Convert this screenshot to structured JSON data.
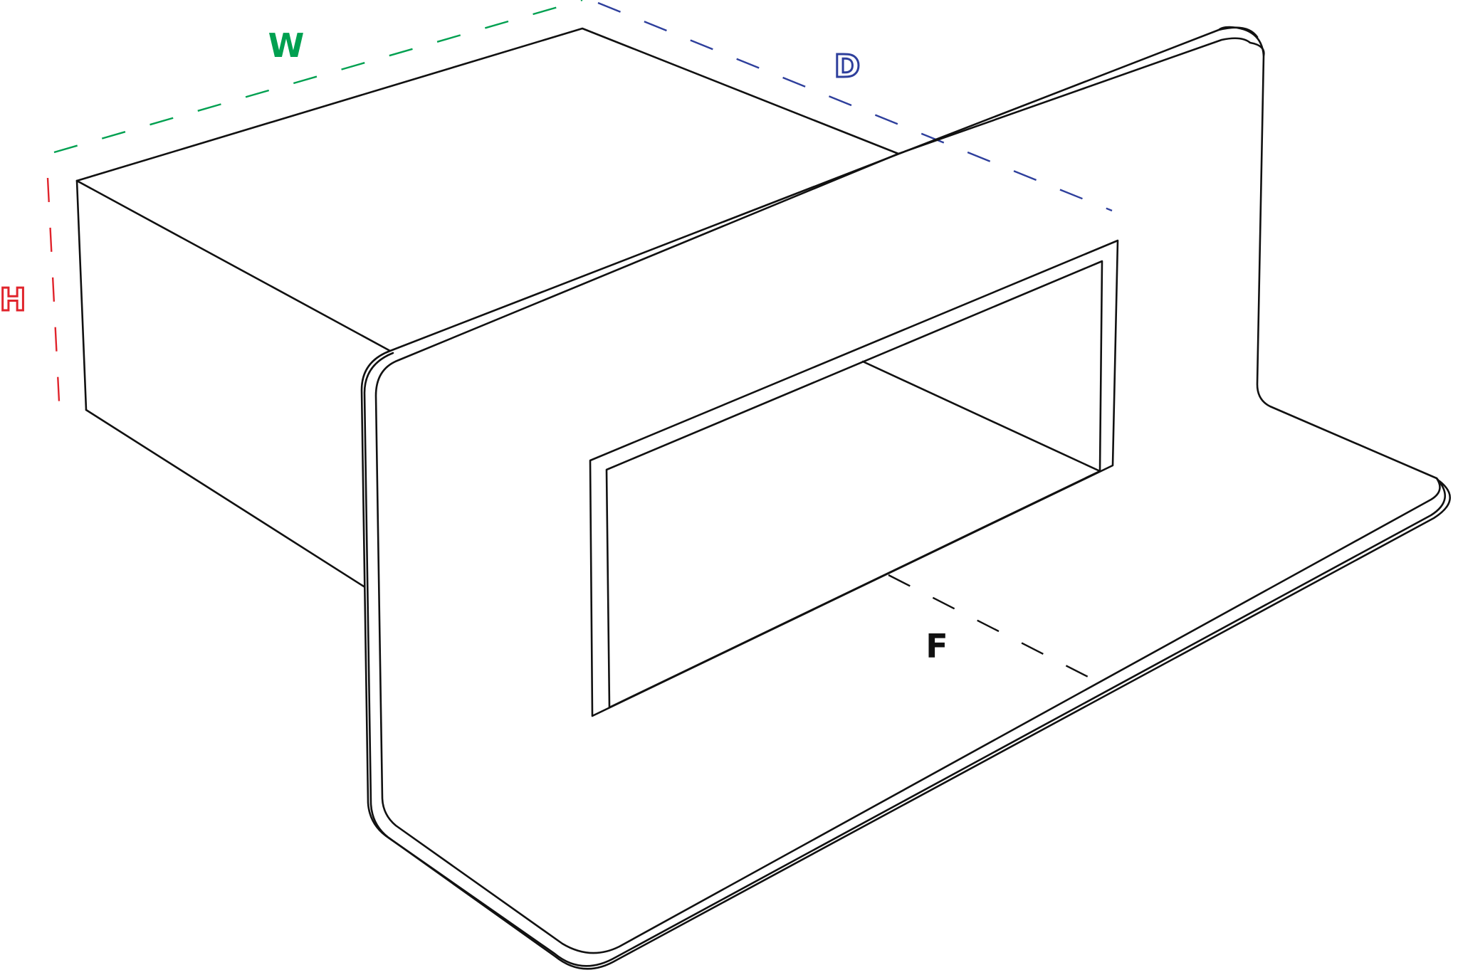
{
  "dimensions": {
    "width": {
      "label": "W",
      "color": "#00a050"
    },
    "depth": {
      "label": "D",
      "color": "#2e3f9c"
    },
    "height": {
      "label": "H",
      "color": "#e0242c"
    },
    "flange": {
      "label": "F",
      "color": "#111111"
    }
  },
  "stroke_color": "#111111"
}
